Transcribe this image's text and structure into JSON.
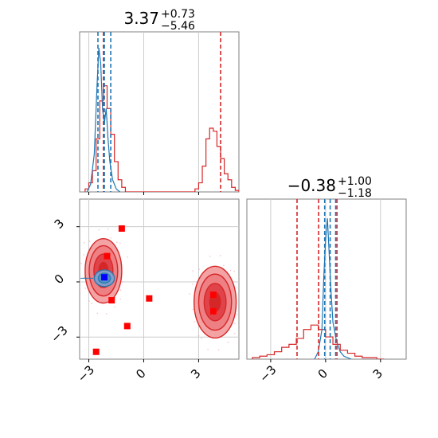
{
  "chart_data": {
    "type": "scatter",
    "grid": true,
    "legend": "none",
    "colors": {
      "posterior_a": "#d62728",
      "posterior_b": "#1f77b4",
      "markers_red": "#ff0000",
      "marker_blue": "#0000ff"
    },
    "panels": {
      "top_hist": {
        "type": "histogram",
        "title": {
          "value": "3.37",
          "plus": "+0.73",
          "minus": "−5.46"
        },
        "xlim": [
          -3.5,
          5.2
        ],
        "red_series": {
          "bin_edges": [
            -3.2,
            -3.0,
            -2.8,
            -2.6,
            -2.4,
            -2.2,
            -2.0,
            -1.8,
            -1.6,
            -1.4,
            -1.2,
            -1.0,
            2.8,
            3.0,
            3.2,
            3.4,
            3.6,
            3.8,
            4.0,
            4.2,
            4.4,
            4.6,
            4.8,
            5.0,
            5.2
          ],
          "counts": [
            0.02,
            0.06,
            0.14,
            0.35,
            0.6,
            0.7,
            0.55,
            0.38,
            0.2,
            0.08,
            0.03,
            0,
            0.02,
            0.06,
            0.17,
            0.35,
            0.42,
            0.4,
            0.3,
            0.22,
            0.12,
            0.08,
            0.03,
            0.01
          ]
        },
        "blue_series": {
          "x": [
            -3.1,
            -2.9,
            -2.7,
            -2.55,
            -2.45,
            -2.35,
            -2.25,
            -2.15,
            -2.05,
            -1.95,
            -1.85,
            -1.7,
            -1.5,
            -1.3
          ],
          "y": [
            0.0,
            0.05,
            0.25,
            0.7,
            0.95,
            0.85,
            0.55,
            0.45,
            0.55,
            0.35,
            0.2,
            0.08,
            0.02,
            0.0
          ]
        },
        "red_quantile_lines": [
          -2.2,
          4.2
        ],
        "blue_quantile_lines": [
          -2.5,
          -2.15,
          -1.8
        ]
      },
      "right_hist": {
        "type": "histogram",
        "title": {
          "value": "−0.38",
          "plus": "+1.00",
          "minus": "−1.18"
        },
        "xlim": [
          -4.3,
          4.4
        ],
        "xticks": [
          -3,
          0,
          3
        ],
        "xtick_labels": [
          "−3",
          "0",
          "3"
        ],
        "red_series": {
          "bin_edges": [
            -4.0,
            -3.6,
            -3.2,
            -2.8,
            -2.4,
            -2.0,
            -1.6,
            -1.2,
            -0.8,
            -0.4,
            0.0,
            0.4,
            0.8,
            1.2,
            1.6,
            2.0,
            2.4,
            2.8,
            3.2
          ],
          "counts": [
            0.01,
            0.02,
            0.03,
            0.05,
            0.08,
            0.1,
            0.14,
            0.2,
            0.23,
            0.2,
            0.15,
            0.1,
            0.06,
            0.04,
            0.02,
            0.01,
            0.01,
            0.0
          ]
        },
        "blue_series": {
          "x": [
            -0.6,
            -0.4,
            -0.2,
            -0.1,
            0.0,
            0.1,
            0.2,
            0.3,
            0.4,
            0.6,
            0.8,
            1.0,
            1.4
          ],
          "y": [
            0.0,
            0.05,
            0.2,
            0.55,
            0.8,
            0.95,
            0.7,
            0.45,
            0.25,
            0.12,
            0.05,
            0.02,
            0.0
          ]
        },
        "red_quantile_lines": [
          -1.56,
          -0.38,
          0.62
        ],
        "blue_quantile_lines": [
          -0.05,
          0.25,
          0.55
        ]
      },
      "joint": {
        "type": "contour-scatter",
        "xlim": [
          -3.5,
          5.2
        ],
        "ylim": [
          -4.2,
          4.5
        ],
        "xticks": [
          -3,
          0,
          3
        ],
        "xtick_labels": [
          "−3",
          "0",
          "3"
        ],
        "yticks": [
          -3,
          0,
          3
        ],
        "ytick_labels": [
          "−3",
          "0",
          "3"
        ],
        "red_blobs": [
          {
            "cx": -2.2,
            "cy": 0.6,
            "rx": 1.0,
            "ry": 1.75
          },
          {
            "cx": 3.9,
            "cy": -1.1,
            "rx": 1.15,
            "ry": 1.95
          }
        ],
        "blue_blob": {
          "cx": -2.15,
          "cy": 0.2,
          "rx": 0.55,
          "ry": 0.45
        },
        "red_markers": [
          {
            "x": -1.2,
            "y": 2.9
          },
          {
            "x": -2.0,
            "y": 1.4
          },
          {
            "x": -1.75,
            "y": -1.0
          },
          {
            "x": 0.3,
            "y": -0.9
          },
          {
            "x": -0.9,
            "y": -2.4
          },
          {
            "x": -2.6,
            "y": -3.8
          },
          {
            "x": 3.8,
            "y": -0.7
          },
          {
            "x": 3.8,
            "y": -1.6
          }
        ],
        "blue_marker": {
          "x": -2.15,
          "y": 0.25
        }
      }
    }
  }
}
